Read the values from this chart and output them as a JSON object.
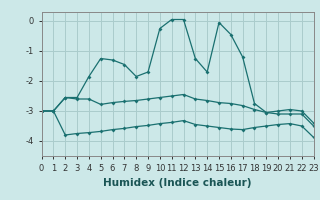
{
  "xlabel": "Humidex (Indice chaleur)",
  "xlim": [
    0,
    23
  ],
  "ylim": [
    -4.5,
    0.3
  ],
  "background_color": "#cce8e8",
  "grid_color": "#aacccc",
  "line_color": "#1a7070",
  "x": [
    0,
    1,
    2,
    3,
    4,
    5,
    6,
    7,
    8,
    9,
    10,
    11,
    12,
    13,
    14,
    15,
    16,
    17,
    18,
    19,
    20,
    21,
    22,
    23
  ],
  "line1": [
    -3.0,
    -3.0,
    -2.55,
    -2.55,
    -1.85,
    -1.25,
    -1.3,
    -1.45,
    -1.85,
    -1.7,
    -0.25,
    0.05,
    0.05,
    -1.25,
    -1.7,
    -0.05,
    -0.45,
    -1.2,
    -2.75,
    -3.05,
    -3.0,
    -2.95,
    -3.0,
    -3.4
  ],
  "line2": [
    -3.0,
    -3.0,
    -2.55,
    -2.6,
    -2.6,
    -2.78,
    -2.72,
    -2.68,
    -2.65,
    -2.6,
    -2.55,
    -2.5,
    -2.45,
    -2.6,
    -2.65,
    -2.72,
    -2.75,
    -2.82,
    -2.95,
    -3.05,
    -3.1,
    -3.1,
    -3.1,
    -3.5
  ],
  "line3": [
    -3.0,
    -3.0,
    -3.8,
    -3.75,
    -3.72,
    -3.68,
    -3.62,
    -3.58,
    -3.52,
    -3.48,
    -3.42,
    -3.38,
    -3.32,
    -3.45,
    -3.5,
    -3.55,
    -3.6,
    -3.62,
    -3.55,
    -3.5,
    -3.45,
    -3.42,
    -3.5,
    -3.88
  ],
  "yticks": [
    0,
    -1,
    -2,
    -3,
    -4
  ],
  "xticks": [
    0,
    1,
    2,
    3,
    4,
    5,
    6,
    7,
    8,
    9,
    10,
    11,
    12,
    13,
    14,
    15,
    16,
    17,
    18,
    19,
    20,
    21,
    22,
    23
  ],
  "tick_fontsize": 6,
  "label_fontsize": 7.5
}
